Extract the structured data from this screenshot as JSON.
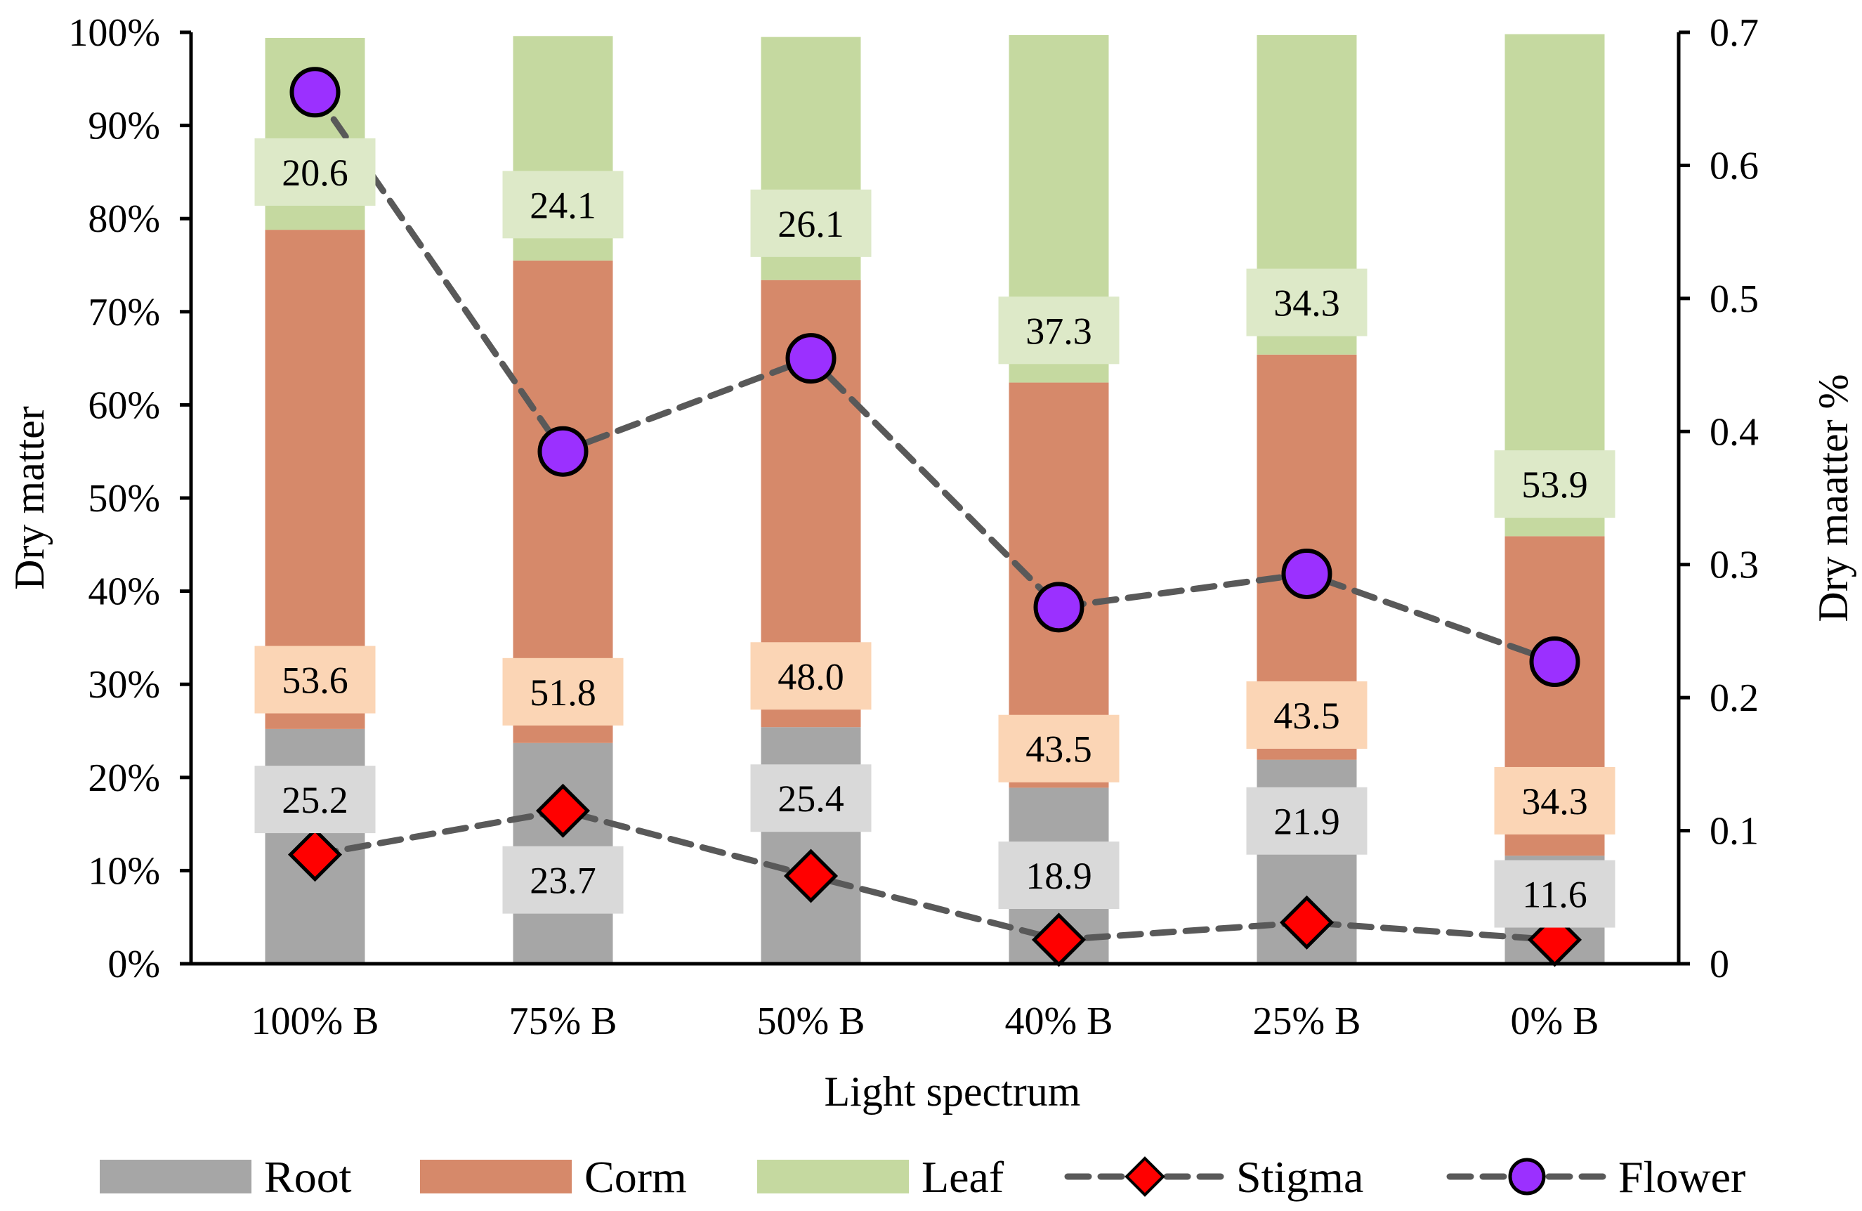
{
  "chart_data": {
    "type": "bar",
    "stacked": true,
    "categories": [
      "100% B",
      "75% B",
      "50% B",
      "40% B",
      "25% B",
      "0% B"
    ],
    "series": [
      {
        "name": "Root",
        "kind": "bar",
        "axis": "left",
        "color": "#a6a6a6",
        "label_bg": "#d9d9d9",
        "values": [
          25.2,
          23.7,
          25.4,
          18.9,
          21.9,
          11.6
        ],
        "labels": [
          "25.2",
          "23.7",
          "25.4",
          "18.9",
          "21.9",
          "11.6"
        ]
      },
      {
        "name": "Corm",
        "kind": "bar",
        "axis": "left",
        "color": "#d6896a",
        "label_bg": "#fbd5b5",
        "values": [
          53.6,
          51.8,
          48.0,
          43.5,
          43.5,
          34.3
        ],
        "labels": [
          "53.6",
          "51.8",
          "48.0",
          "43.5",
          "43.5",
          "34.3"
        ]
      },
      {
        "name": "Leaf",
        "kind": "bar",
        "axis": "left",
        "color": "#c5d9a0",
        "label_bg": "#dde9c8",
        "values": [
          20.6,
          24.1,
          26.1,
          37.3,
          34.3,
          53.9
        ],
        "labels": [
          "20.6",
          "24.1",
          "26.1",
          "37.3",
          "34.3",
          "53.9"
        ]
      },
      {
        "name": "Stigma",
        "kind": "line",
        "axis": "right",
        "marker": "diamond",
        "color": "#ff0000",
        "line_color": "#595959",
        "values": [
          0.082,
          0.115,
          0.066,
          0.018,
          0.031,
          0.018
        ]
      },
      {
        "name": "Flower",
        "kind": "line",
        "axis": "right",
        "marker": "circle",
        "color": "#9b30ff",
        "line_color": "#595959",
        "values": [
          0.655,
          0.385,
          0.455,
          0.268,
          0.293,
          0.227
        ]
      }
    ],
    "xlabel": "Light spectrum",
    "ylabel": "Dry matter",
    "y2label": "Dry maatter %",
    "ylim": [
      0,
      100
    ],
    "y2lim": [
      0,
      0.7
    ],
    "yticks": [
      "0%",
      "10%",
      "20%",
      "30%",
      "40%",
      "50%",
      "60%",
      "70%",
      "80%",
      "90%",
      "100%"
    ],
    "y2ticks": [
      "0",
      "0.1",
      "0.2",
      "0.3",
      "0.4",
      "0.5",
      "0.6",
      "0.7"
    ],
    "legend": [
      "Root",
      "Corm",
      "Leaf",
      "Stigma",
      "Flower"
    ],
    "legend_position": "bottom",
    "grid": false
  }
}
